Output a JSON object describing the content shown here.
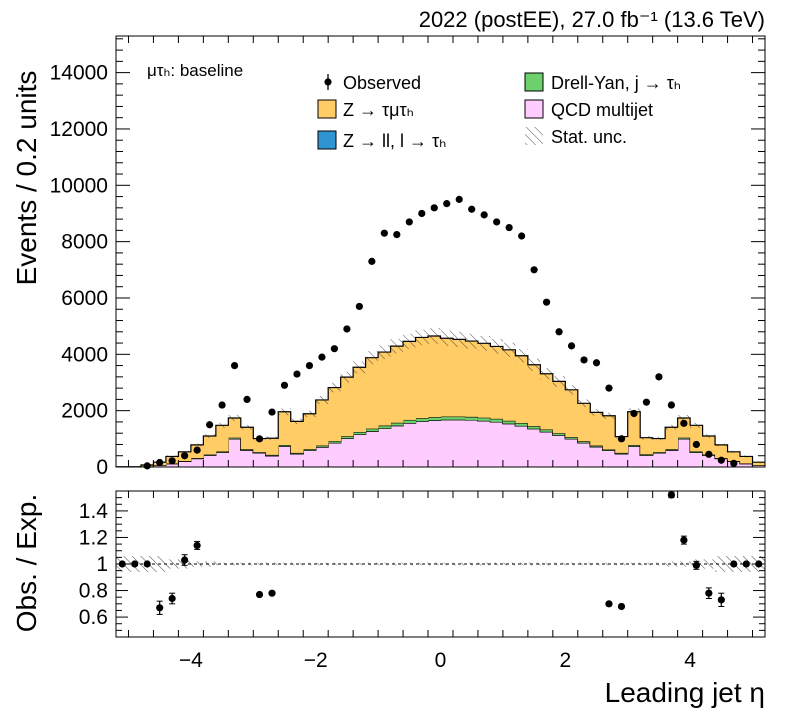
{
  "header": {
    "lumi_label": "2022 (postEE), 27.0 fb⁻¹ (13.6 TeV)"
  },
  "channel_label": "μτₕ: baseline",
  "legend": {
    "observed": "Observed",
    "ztt": "Z → τμτₕ",
    "zll": "Z → ll, l → τₕ",
    "dy_jet": "Drell-Yan, j  → τₕ",
    "qcd": "QCD multijet",
    "stat": "Stat. unc."
  },
  "colors": {
    "ztt": "#ffcc66",
    "zll": "#3194d2",
    "dy_jet": "#6cd16c",
    "qcd": "#ffccff",
    "observed": "#000000"
  },
  "chart_data": {
    "type": "bar",
    "subtype": "stacked-histogram-with-ratio",
    "xlabel": "Leading jet  η",
    "ylabel": "Events / 0.2 units",
    "ratio_ylabel": "Obs. / Exp.",
    "xlim": [
      -5.2,
      5.2
    ],
    "ylim": [
      0,
      15300
    ],
    "ratio_ylim": [
      0.45,
      1.55
    ],
    "x_ticks": [
      -4,
      -2,
      0,
      2,
      4
    ],
    "x_tick_labels": [
      "−4",
      "−2",
      "0",
      "2",
      "4"
    ],
    "y_ticks": [
      0,
      2000,
      4000,
      6000,
      8000,
      10000,
      12000,
      14000
    ],
    "ratio_y_ticks": [
      0.6,
      0.8,
      1,
      1.2,
      1.4
    ],
    "ratio_y_tick_labels": [
      "0.6",
      "0.8",
      "1",
      "1.2",
      "1.4"
    ],
    "bin_edges": [
      -5.2,
      -5.0,
      -4.8,
      -4.6,
      -4.4,
      -4.2,
      -4.0,
      -3.8,
      -3.6,
      -3.4,
      -3.2,
      -3.0,
      -2.8,
      -2.6,
      -2.4,
      -2.2,
      -2.0,
      -1.8,
      -1.6,
      -1.4,
      -1.2,
      -1.0,
      -0.8,
      -0.6,
      -0.4,
      -0.2,
      0.0,
      0.2,
      0.4,
      0.6,
      0.8,
      1.0,
      1.2,
      1.4,
      1.6,
      1.8,
      2.0,
      2.2,
      2.4,
      2.6,
      2.8,
      3.0,
      3.2,
      3.4,
      3.6,
      3.8,
      4.0,
      4.2,
      4.4,
      4.6,
      4.8,
      5.0,
      5.2
    ],
    "series": [
      {
        "name": "QCD multijet",
        "values": [
          0,
          0,
          20,
          60,
          120,
          200,
          300,
          420,
          520,
          1000,
          600,
          500,
          400,
          740,
          470,
          590,
          710,
          860,
          1020,
          1160,
          1270,
          1370,
          1470,
          1560,
          1620,
          1660,
          1680,
          1680,
          1670,
          1640,
          1600,
          1540,
          1460,
          1360,
          1250,
          1130,
          1000,
          860,
          720,
          590,
          470,
          740,
          420,
          500,
          600,
          1000,
          520,
          420,
          300,
          200,
          120,
          60
        ]
      },
      {
        "name": "Z → ll, l → τₕ",
        "values": [
          0,
          0,
          0,
          0,
          0,
          0,
          0,
          0,
          0,
          0,
          0,
          0,
          0,
          0,
          0,
          0,
          0,
          0,
          0,
          0,
          0,
          0,
          0,
          0,
          0,
          0,
          0,
          0,
          0,
          0,
          0,
          0,
          0,
          0,
          0,
          0,
          0,
          0,
          0,
          0,
          0,
          0,
          0,
          0,
          0,
          0,
          0,
          0,
          0,
          0,
          0,
          0
        ]
      },
      {
        "name": "Drell-Yan, j  → τₕ",
        "values": [
          0,
          0,
          0,
          0,
          5,
          10,
          15,
          20,
          30,
          40,
          30,
          30,
          30,
          40,
          30,
          40,
          50,
          60,
          70,
          80,
          90,
          100,
          100,
          110,
          110,
          110,
          110,
          110,
          110,
          110,
          110,
          100,
          100,
          90,
          80,
          70,
          60,
          50,
          40,
          30,
          30,
          40,
          30,
          30,
          30,
          40,
          30,
          20,
          15,
          10,
          5,
          0
        ]
      },
      {
        "name": "Z → τμτₕ",
        "values": [
          0,
          0,
          50,
          110,
          250,
          330,
          470,
          660,
          930,
          700,
          780,
          480,
          590,
          1180,
          1120,
          1260,
          1620,
          1900,
          2100,
          2300,
          2520,
          2610,
          2720,
          2790,
          2870,
          2880,
          2780,
          2740,
          2690,
          2640,
          2570,
          2520,
          2390,
          2180,
          1980,
          1840,
          1680,
          1350,
          1180,
          1200,
          580,
          1180,
          590,
          480,
          780,
          700,
          930,
          660,
          470,
          330,
          250,
          110
        ]
      }
    ],
    "observed": {
      "name": "Observed",
      "x": [
        -4.7,
        -4.5,
        -4.3,
        -4.1,
        -3.9,
        -3.7,
        -3.5,
        -3.3,
        -3.1,
        -2.9,
        -2.7,
        -2.5,
        -2.3,
        -2.1,
        -1.9,
        -1.7,
        -1.5,
        -1.3,
        -1.1,
        -0.9,
        -0.7,
        -0.5,
        -0.3,
        -0.1,
        0.1,
        0.3,
        0.5,
        0.7,
        0.9,
        1.1,
        1.3,
        1.5,
        1.7,
        1.9,
        2.1,
        2.3,
        2.5,
        2.7,
        2.9,
        3.1,
        3.3,
        3.5,
        3.7,
        3.9,
        4.1,
        4.3,
        4.5,
        4.7
      ],
      "y": [
        40,
        160,
        220,
        400,
        600,
        1500,
        2200,
        3600,
        2400,
        1000,
        1950,
        2900,
        3300,
        3600,
        3900,
        4200,
        4900,
        5700,
        7300,
        8300,
        8250,
        8700,
        9000,
        9200,
        9350,
        9500,
        9150,
        8950,
        8700,
        8500,
        8200,
        7000,
        5850,
        4800,
        4300,
        3800,
        3700,
        2800,
        1000,
        1900,
        2300,
        3200,
        2200,
        1550,
        800,
        450,
        240,
        130
      ]
    },
    "ratio": {
      "x": [
        -5.1,
        -4.9,
        -4.7,
        -4.5,
        -4.3,
        -4.1,
        -3.9,
        -2.9,
        -2.7,
        2.7,
        2.9,
        3.7,
        3.9,
        4.1,
        4.3,
        4.5,
        4.7,
        4.9,
        5.1
      ],
      "y": [
        1.0,
        1.0,
        1.0,
        0.67,
        0.74,
        1.03,
        1.14,
        0.77,
        0.78,
        0.7,
        0.68,
        1.52,
        1.18,
        0.99,
        0.78,
        0.73,
        1.0,
        1.0,
        1.0
      ],
      "err": [
        0,
        0,
        0,
        0.05,
        0.04,
        0.04,
        0.03,
        0.01,
        0.01,
        0.01,
        0.01,
        0.02,
        0.03,
        0.03,
        0.04,
        0.05,
        0,
        0,
        0
      ]
    }
  }
}
